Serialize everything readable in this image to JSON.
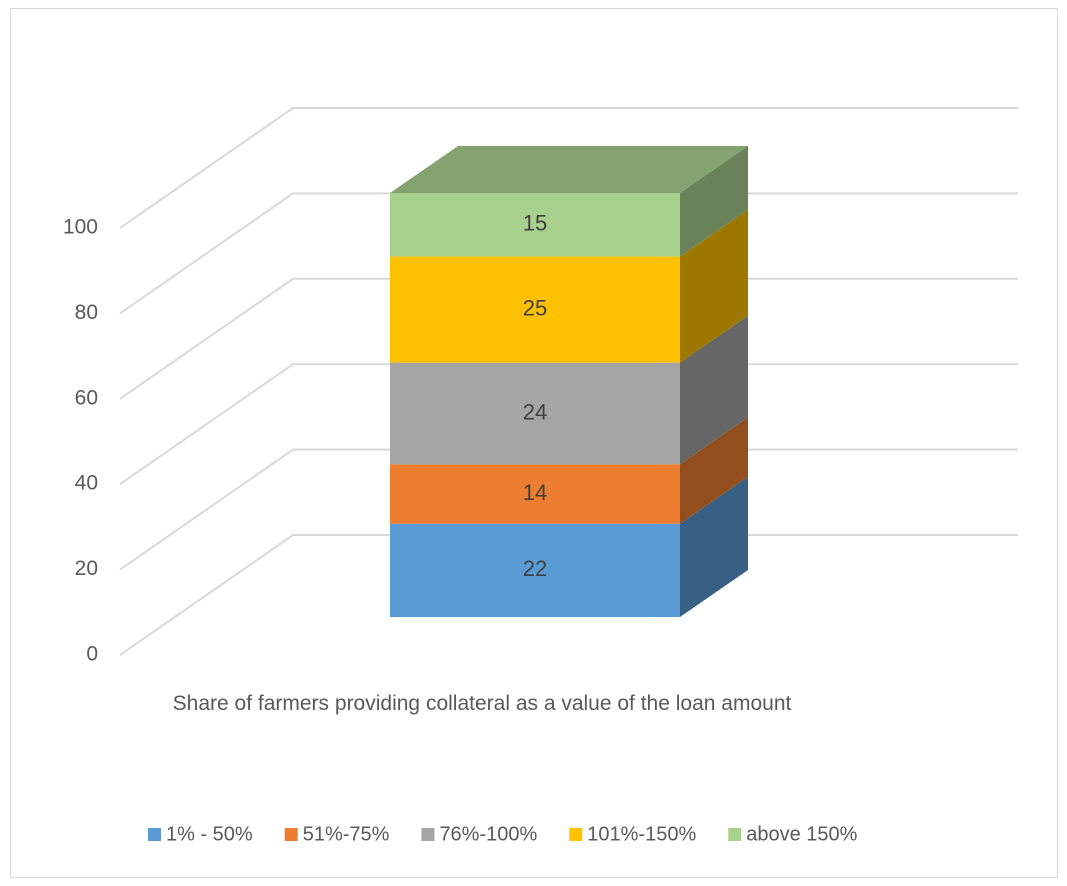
{
  "chart_data": {
    "type": "bar3d_stacked",
    "categories": [
      "Share of farmers providing collateral as a value of the loan amount"
    ],
    "series": [
      {
        "name": "1% - 50%",
        "color": "#5b9bd5",
        "values": [
          22
        ]
      },
      {
        "name": "51%-75%",
        "color": "#ed7d31",
        "values": [
          14
        ]
      },
      {
        "name": "76%-100%",
        "color": "#a5a5a5",
        "values": [
          24
        ]
      },
      {
        "name": "101%-150%",
        "color": "#ffc000",
        "values": [
          25
        ]
      },
      {
        "name": "above 150%",
        "color": "#a9d18e",
        "values": [
          15
        ]
      }
    ],
    "ylim": [
      0,
      100
    ],
    "yticks": [
      0,
      20,
      40,
      60,
      80,
      100
    ],
    "grid": true,
    "legend": "bottom"
  }
}
